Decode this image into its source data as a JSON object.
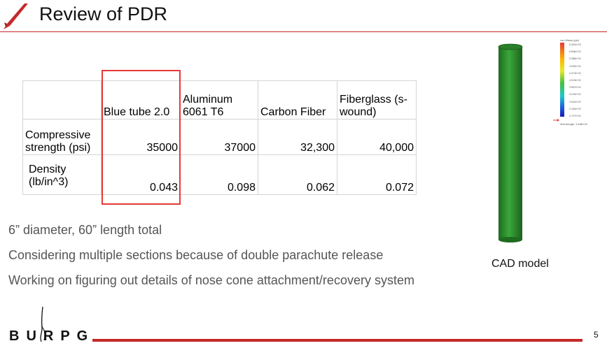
{
  "slide": {
    "title": "Review of PDR",
    "page_number": "5"
  },
  "table": {
    "headers": [
      "",
      "Blue tube 2.0",
      "Aluminum 6061 T6",
      "Carbon Fiber",
      "Fiberglass (s-wound)"
    ],
    "rows": [
      {
        "label": "Compressive strength (psi)",
        "values": [
          "35000",
          "37000",
          "32,300",
          "40,000"
        ]
      },
      {
        "label": "Density (lb/in^3)",
        "values": [
          "0.043",
          "0.098",
          "0.062",
          "0.072"
        ]
      }
    ]
  },
  "bullets": [
    "6” diameter, 60” length total",
    "Considering multiple sections because of double parachute release",
    "Working on figuring out details of nose cone attachment/recovery system"
  ],
  "cad": {
    "caption": "CAD model",
    "legend_title": "von Mises (psi)",
    "legend_values": [
      "6.302e+02",
      "5.846e+02",
      "5.388e+02",
      "4.930e+02",
      "4.473e+02",
      "4.015e+02",
      "3.557e+02",
      "3.100e+02",
      "2.642e+02",
      "2.184e+02",
      "1.727e+02"
    ],
    "legend_note": "Yield strength: 3.448e+04"
  },
  "logo": {
    "text": "BURPG"
  },
  "colors": {
    "accent": "#c62828",
    "highlight": "#e53935",
    "tube": "#2e8b2e",
    "bullet_text": "#555555"
  }
}
